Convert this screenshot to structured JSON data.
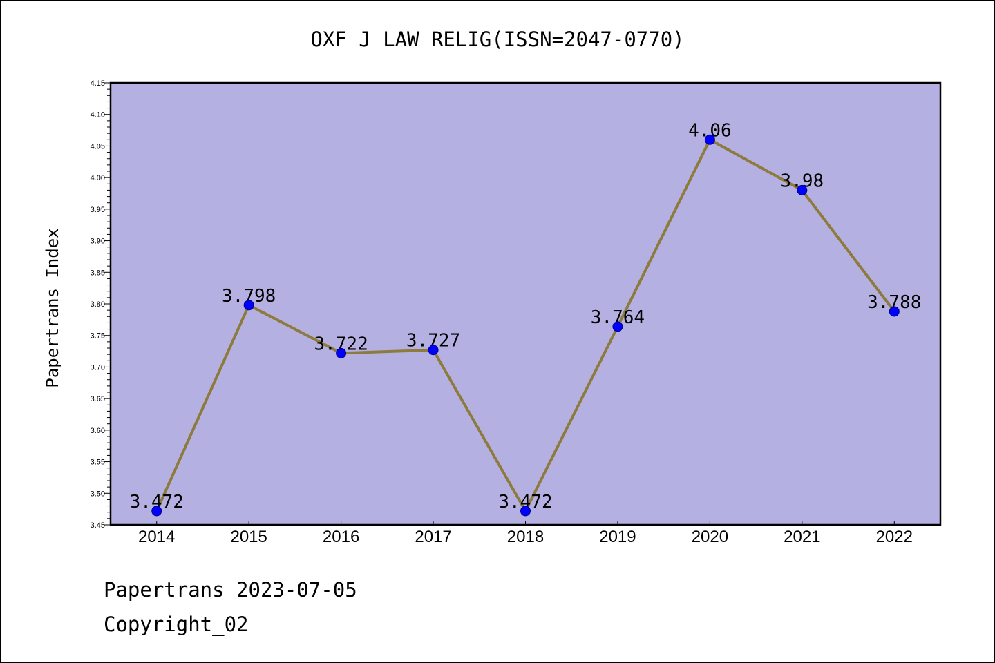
{
  "chart_data": {
    "type": "line",
    "title": "OXF J LAW RELIG(ISSN=2047-0770)",
    "xlabel": "",
    "ylabel": "Papertrans Index",
    "categories": [
      "2014",
      "2015",
      "2016",
      "2017",
      "2018",
      "2019",
      "2020",
      "2021",
      "2022"
    ],
    "series": [
      {
        "values": [
          3.472,
          3.798,
          3.722,
          3.727,
          3.472,
          3.764,
          4.06,
          3.98,
          3.788
        ]
      }
    ],
    "data_labels": [
      "3.472",
      "3.798",
      "3.722",
      "3.727",
      "3.472",
      "3.764",
      "4.06",
      "3.98",
      "3.788"
    ],
    "ylim": [
      3.45,
      4.15
    ],
    "yticks": [
      "3.45",
      "3.50",
      "3.55",
      "3.60",
      "3.65",
      "3.70",
      "3.75",
      "3.80",
      "3.85",
      "3.90",
      "3.95",
      "4.00",
      "4.05",
      "4.10",
      "4.15"
    ],
    "grid": false,
    "legend": "none",
    "colors": {
      "plot_background": "#b5b0e2",
      "line": "#8c7b3c",
      "marker": "#0000ff",
      "marker_edge": "#00008b",
      "frame": "#000000"
    }
  },
  "footer": {
    "date_line": "Papertrans 2023-07-05",
    "copyright": "Copyright_02"
  }
}
